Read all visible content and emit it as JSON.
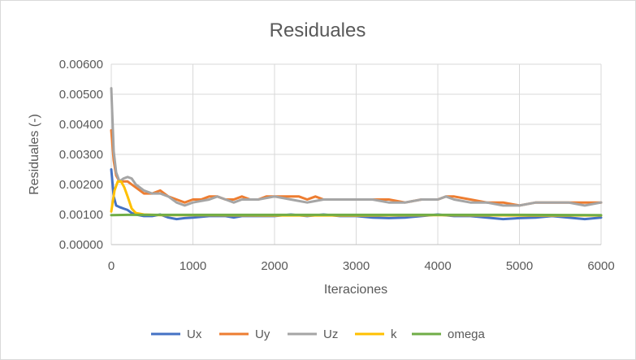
{
  "chart_data": {
    "type": "line",
    "title": "Residuales",
    "xlabel": "Iteraciones",
    "ylabel": "Residuales (-)",
    "xlim": [
      0,
      6000
    ],
    "ylim": [
      0,
      0.006
    ],
    "xticks": [
      "0",
      "1000",
      "2000",
      "3000",
      "4000",
      "5000",
      "6000"
    ],
    "yticks": [
      "0.00000",
      "0.00100",
      "0.00200",
      "0.00300",
      "0.00400",
      "0.00500",
      "0.00600"
    ],
    "grid": true,
    "legend_position": "bottom",
    "series": [
      {
        "name": "Ux",
        "color": "#4472C4",
        "points": [
          [
            0,
            0.0025
          ],
          [
            30,
            0.0016
          ],
          [
            60,
            0.0013
          ],
          [
            100,
            0.00125
          ],
          [
            150,
            0.0012
          ],
          [
            200,
            0.00115
          ],
          [
            250,
            0.00105
          ],
          [
            300,
            0.001
          ],
          [
            400,
            0.00095
          ],
          [
            500,
            0.00095
          ],
          [
            600,
            0.001
          ],
          [
            700,
            0.0009
          ],
          [
            800,
            0.00085
          ],
          [
            900,
            0.00088
          ],
          [
            1000,
            0.0009
          ],
          [
            1200,
            0.00095
          ],
          [
            1400,
            0.00095
          ],
          [
            1500,
            0.0009
          ],
          [
            1600,
            0.00095
          ],
          [
            1800,
            0.00095
          ],
          [
            2000,
            0.00095
          ],
          [
            2200,
            0.001
          ],
          [
            2400,
            0.00095
          ],
          [
            2600,
            0.001
          ],
          [
            2800,
            0.00095
          ],
          [
            3000,
            0.00095
          ],
          [
            3200,
            0.0009
          ],
          [
            3400,
            0.00088
          ],
          [
            3600,
            0.0009
          ],
          [
            3800,
            0.00095
          ],
          [
            4000,
            0.001
          ],
          [
            4200,
            0.00095
          ],
          [
            4400,
            0.00095
          ],
          [
            4600,
            0.0009
          ],
          [
            4800,
            0.00085
          ],
          [
            5000,
            0.00088
          ],
          [
            5200,
            0.0009
          ],
          [
            5400,
            0.00095
          ],
          [
            5600,
            0.0009
          ],
          [
            5800,
            0.00085
          ],
          [
            6000,
            0.0009
          ]
        ]
      },
      {
        "name": "Uy",
        "color": "#ED7D31",
        "points": [
          [
            0,
            0.0038
          ],
          [
            30,
            0.0028
          ],
          [
            60,
            0.0023
          ],
          [
            100,
            0.0021
          ],
          [
            200,
            0.0021
          ],
          [
            300,
            0.0019
          ],
          [
            400,
            0.0017
          ],
          [
            500,
            0.0017
          ],
          [
            600,
            0.0018
          ],
          [
            700,
            0.0016
          ],
          [
            800,
            0.0015
          ],
          [
            900,
            0.0014
          ],
          [
            1000,
            0.0015
          ],
          [
            1100,
            0.0015
          ],
          [
            1200,
            0.0016
          ],
          [
            1300,
            0.0016
          ],
          [
            1400,
            0.0015
          ],
          [
            1500,
            0.0015
          ],
          [
            1600,
            0.0016
          ],
          [
            1700,
            0.0015
          ],
          [
            1800,
            0.0015
          ],
          [
            1900,
            0.0016
          ],
          [
            2000,
            0.0016
          ],
          [
            2100,
            0.0016
          ],
          [
            2200,
            0.0016
          ],
          [
            2300,
            0.0016
          ],
          [
            2400,
            0.0015
          ],
          [
            2500,
            0.0016
          ],
          [
            2600,
            0.0015
          ],
          [
            2800,
            0.0015
          ],
          [
            3000,
            0.0015
          ],
          [
            3200,
            0.0015
          ],
          [
            3400,
            0.0015
          ],
          [
            3600,
            0.0014
          ],
          [
            3800,
            0.0015
          ],
          [
            4000,
            0.0015
          ],
          [
            4100,
            0.0016
          ],
          [
            4200,
            0.0016
          ],
          [
            4400,
            0.0015
          ],
          [
            4600,
            0.0014
          ],
          [
            4800,
            0.0014
          ],
          [
            5000,
            0.0013
          ],
          [
            5200,
            0.0014
          ],
          [
            5400,
            0.0014
          ],
          [
            5600,
            0.0014
          ],
          [
            5800,
            0.0014
          ],
          [
            6000,
            0.0014
          ]
        ]
      },
      {
        "name": "Uz",
        "color": "#A5A5A5",
        "points": [
          [
            0,
            0.0052
          ],
          [
            30,
            0.0031
          ],
          [
            60,
            0.0024
          ],
          [
            100,
            0.0021
          ],
          [
            150,
            0.0022
          ],
          [
            200,
            0.00225
          ],
          [
            250,
            0.0022
          ],
          [
            300,
            0.002
          ],
          [
            400,
            0.0018
          ],
          [
            500,
            0.0017
          ],
          [
            600,
            0.0017
          ],
          [
            700,
            0.0016
          ],
          [
            800,
            0.0014
          ],
          [
            900,
            0.0013
          ],
          [
            1000,
            0.0014
          ],
          [
            1200,
            0.0015
          ],
          [
            1300,
            0.0016
          ],
          [
            1400,
            0.0015
          ],
          [
            1500,
            0.0014
          ],
          [
            1600,
            0.0015
          ],
          [
            1800,
            0.0015
          ],
          [
            2000,
            0.0016
          ],
          [
            2200,
            0.0015
          ],
          [
            2400,
            0.0014
          ],
          [
            2600,
            0.0015
          ],
          [
            2800,
            0.0015
          ],
          [
            3000,
            0.0015
          ],
          [
            3200,
            0.0015
          ],
          [
            3400,
            0.0014
          ],
          [
            3600,
            0.0014
          ],
          [
            3800,
            0.0015
          ],
          [
            4000,
            0.0015
          ],
          [
            4100,
            0.0016
          ],
          [
            4200,
            0.0015
          ],
          [
            4400,
            0.0014
          ],
          [
            4600,
            0.0014
          ],
          [
            4800,
            0.0013
          ],
          [
            5000,
            0.0013
          ],
          [
            5200,
            0.0014
          ],
          [
            5400,
            0.0014
          ],
          [
            5600,
            0.0014
          ],
          [
            5800,
            0.0013
          ],
          [
            6000,
            0.0014
          ]
        ]
      },
      {
        "name": "k",
        "color": "#FFC000",
        "points": [
          [
            0,
            0.0011
          ],
          [
            40,
            0.0018
          ],
          [
            80,
            0.0021
          ],
          [
            120,
            0.0021
          ],
          [
            160,
            0.0019
          ],
          [
            200,
            0.0016
          ],
          [
            250,
            0.0012
          ],
          [
            300,
            0.00105
          ],
          [
            400,
            0.001
          ],
          [
            600,
            0.00098
          ],
          [
            1000,
            0.00098
          ],
          [
            2000,
            0.00097
          ],
          [
            3000,
            0.00097
          ],
          [
            4000,
            0.00098
          ],
          [
            5000,
            0.00097
          ],
          [
            6000,
            0.00097
          ]
        ]
      },
      {
        "name": "omega",
        "color": "#70AD47",
        "points": [
          [
            0,
            0.00098
          ],
          [
            200,
            0.00099
          ],
          [
            1000,
            0.00099
          ],
          [
            2000,
            0.00099
          ],
          [
            3000,
            0.00099
          ],
          [
            4000,
            0.00099
          ],
          [
            5000,
            0.00099
          ],
          [
            6000,
            0.00098
          ]
        ]
      }
    ]
  }
}
